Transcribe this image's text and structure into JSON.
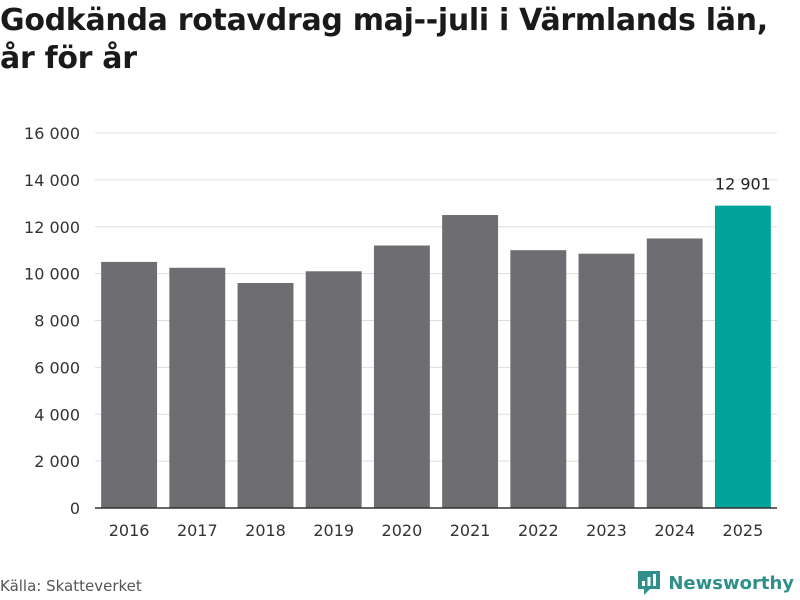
{
  "title": "Godkända rotavdrag maj--juli i Värmlands län, år för år",
  "source": "Källa: Skatteverket",
  "brand": {
    "name": "Newsworthy",
    "icon": "newsworthy-logo-icon"
  },
  "colors": {
    "bar": "#6e6d72",
    "highlight": "#00a49a",
    "grid": "#dddddd",
    "axis": "#333333"
  },
  "chart_data": {
    "type": "bar",
    "categories": [
      "2016",
      "2017",
      "2018",
      "2019",
      "2020",
      "2021",
      "2022",
      "2023",
      "2024",
      "2025"
    ],
    "values": [
      10500,
      10250,
      9600,
      10100,
      11200,
      12500,
      11000,
      10850,
      11500,
      12901
    ],
    "highlight_index": 9,
    "data_labels": [
      {
        "index": 9,
        "text": "12 901"
      }
    ],
    "yticks": [
      0,
      2000,
      4000,
      6000,
      8000,
      10000,
      12000,
      14000,
      16000
    ],
    "ytick_labels": [
      "0",
      "2 000",
      "4 000",
      "6 000",
      "8 000",
      "10 000",
      "12 000",
      "14 000",
      "16 000"
    ],
    "ylim": [
      0,
      16000
    ],
    "grid": true,
    "xlabel": "",
    "ylabel": ""
  }
}
